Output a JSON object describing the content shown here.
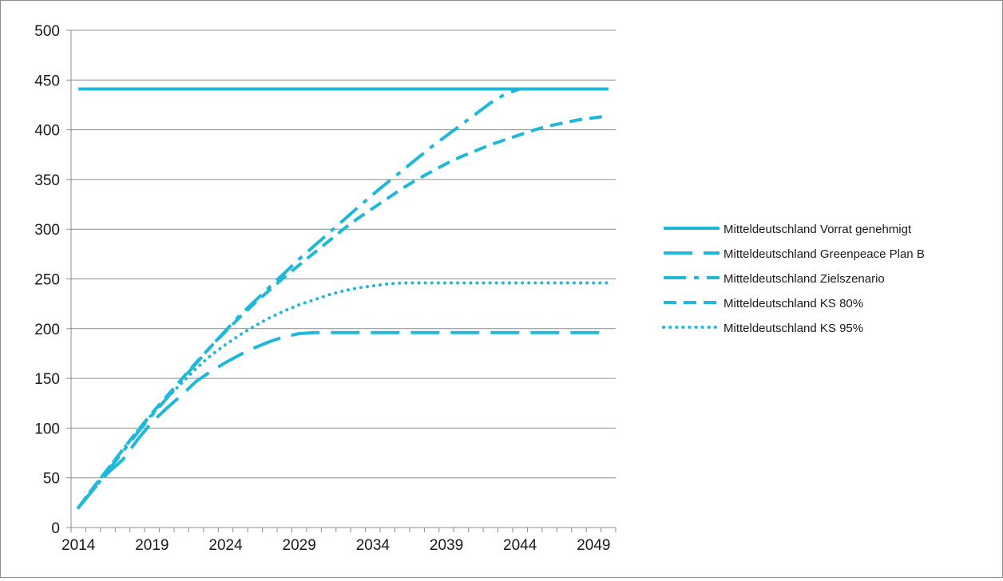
{
  "chart_data": {
    "type": "line",
    "title": "",
    "xlabel": "",
    "ylabel": "",
    "x": [
      2014,
      2015,
      2016,
      2017,
      2018,
      2019,
      2020,
      2021,
      2022,
      2023,
      2024,
      2025,
      2026,
      2027,
      2028,
      2029,
      2030,
      2031,
      2032,
      2033,
      2034,
      2035,
      2036,
      2037,
      2038,
      2039,
      2040,
      2041,
      2042,
      2043,
      2044,
      2045,
      2046,
      2047,
      2048,
      2049,
      2050
    ],
    "x_tick_labels": [
      "2014",
      "2019",
      "2024",
      "2029",
      "2034",
      "2039",
      "2044",
      "2049"
    ],
    "x_tick_values": [
      2014,
      2019,
      2024,
      2029,
      2034,
      2039,
      2044,
      2049
    ],
    "ylim": [
      0,
      500
    ],
    "y_ticks": [
      0,
      50,
      100,
      150,
      200,
      250,
      300,
      350,
      400,
      450,
      500
    ],
    "grid": "horizontal",
    "legend_position": "right",
    "color": "#1fb8d8",
    "series": [
      {
        "name": "Mitteldeutschland Vorrat genehmigt",
        "style": "solid",
        "values": [
          441,
          441,
          441,
          441,
          441,
          441,
          441,
          441,
          441,
          441,
          441,
          441,
          441,
          441,
          441,
          441,
          441,
          441,
          441,
          441,
          441,
          441,
          441,
          441,
          441,
          441,
          441,
          441,
          441,
          441,
          441,
          441,
          441,
          441,
          441,
          441,
          441
        ]
      },
      {
        "name": "Mitteldeutschland Greenpeace Plan B",
        "style": "long-dash",
        "values": [
          20,
          38,
          55,
          68,
          88,
          106,
          120,
          133,
          147,
          157,
          166,
          174,
          181,
          187,
          192,
          195,
          196,
          196,
          196,
          196,
          196,
          196,
          196,
          196,
          196,
          196,
          196,
          196,
          196,
          196,
          196,
          196,
          196,
          196,
          196,
          196,
          196
        ]
      },
      {
        "name": "Mitteldeutschland Zielszenario",
        "style": "dash-dot",
        "values": [
          20,
          38,
          57,
          76,
          95,
          113,
          130,
          148,
          165,
          182,
          198,
          214,
          228,
          242,
          256,
          270,
          283,
          296,
          309,
          322,
          335,
          347,
          359,
          371,
          383,
          394,
          405,
          416,
          427,
          436,
          441,
          441,
          441,
          441,
          441,
          441,
          441
        ]
      },
      {
        "name": "Mitteldeutschland KS 80%",
        "style": "dash",
        "values": [
          20,
          40,
          59,
          78,
          97,
          115,
          132,
          149,
          166,
          182,
          197,
          212,
          226,
          239,
          252,
          264,
          276,
          288,
          300,
          311,
          321,
          331,
          341,
          350,
          358,
          366,
          373,
          379,
          385,
          390,
          395,
          400,
          404,
          407,
          410,
          412,
          414
        ]
      },
      {
        "name": "Mitteldeutschland KS 95%",
        "style": "dot",
        "values": [
          20,
          40,
          59,
          78,
          97,
          114,
          130,
          145,
          160,
          173,
          184,
          194,
          203,
          211,
          218,
          224,
          229,
          234,
          238,
          241,
          243,
          245,
          246,
          246,
          246,
          246,
          246,
          246,
          246,
          246,
          246,
          246,
          246,
          246,
          246,
          246,
          246
        ]
      }
    ]
  }
}
